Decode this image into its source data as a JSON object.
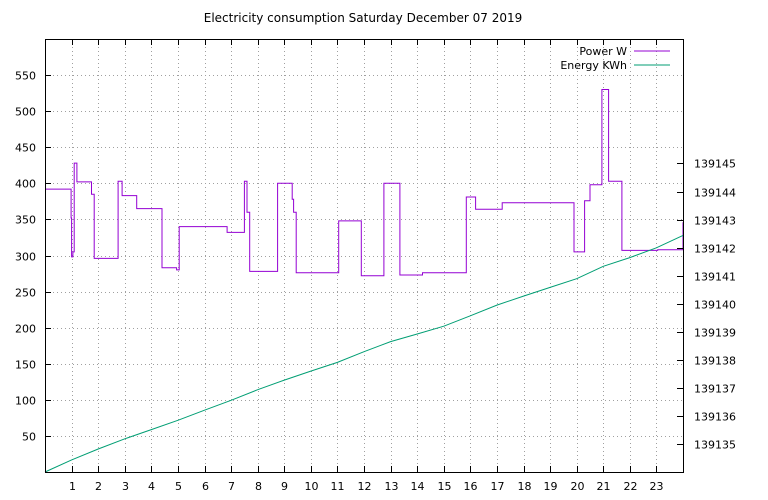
{
  "chart_data": {
    "type": "line",
    "title": "Electricity consumption Saturday December 07 2019",
    "xlim": [
      0,
      24
    ],
    "x_ticks": [
      1,
      2,
      3,
      4,
      5,
      6,
      7,
      8,
      9,
      10,
      11,
      12,
      13,
      14,
      15,
      16,
      17,
      18,
      19,
      20,
      21,
      22,
      23
    ],
    "y_left_lim": [
      0,
      600
    ],
    "y_left_ticks": [
      50,
      100,
      150,
      200,
      250,
      300,
      350,
      400,
      450,
      500,
      550
    ],
    "y_right_lim": [
      139134.02,
      139149.43
    ],
    "y_right_ticks": [
      139135,
      139136,
      139137,
      139138,
      139139,
      139140,
      139141,
      139142,
      139143,
      139144,
      139145
    ],
    "grid": true,
    "legend_position": "top-right",
    "series": [
      {
        "name": "Power W",
        "color": "#9400d3",
        "axis": "left",
        "step": true,
        "x": [
          0,
          0.98,
          1.0,
          1.05,
          1.1,
          1.2,
          1.35,
          1.75,
          1.85,
          2.65,
          2.75,
          2.9,
          3.35,
          3.45,
          4.4,
          4.95,
          5.05,
          6.0,
          6.85,
          7.5,
          7.6,
          7.7,
          8.7,
          8.75,
          9.2,
          9.3,
          9.35,
          9.45,
          11.05,
          11.8,
          11.9,
          12.65,
          12.75,
          13.25,
          13.35,
          14.2,
          15.55,
          15.85,
          16.2,
          17.2,
          18.8,
          19.9,
          20.2,
          20.3,
          20.5,
          20.95,
          21.2,
          21.7,
          23.05,
          24
        ],
        "y": [
          392,
          352,
          298,
          305,
          428,
          402,
          402,
          385,
          296,
          296,
          403,
          383,
          383,
          365,
          283,
          280,
          340,
          340,
          332,
          403,
          360,
          278,
          278,
          400,
          400,
          378,
          360,
          276,
          348,
          348,
          272,
          272,
          400,
          400,
          273,
          276,
          276,
          381,
          364,
          373,
          373,
          305,
          305,
          376,
          398,
          530,
          403,
          307,
          308,
          346
        ]
      },
      {
        "name": "Energy KWh",
        "color": "#009e73",
        "axis": "right",
        "step": false,
        "x": [
          0,
          1,
          2,
          3,
          4,
          5,
          6,
          7,
          8,
          9,
          10,
          11,
          12,
          13,
          14,
          15,
          16,
          17,
          18,
          19,
          20,
          21,
          22,
          23,
          24
        ],
        "y": [
          139134.02,
          139134.45,
          139134.84,
          139135.2,
          139135.53,
          139135.86,
          139136.22,
          139136.57,
          139136.95,
          139137.29,
          139137.61,
          139137.92,
          139138.3,
          139138.66,
          139138.93,
          139139.21,
          139139.58,
          139139.96,
          139140.28,
          139140.59,
          139140.9,
          139141.34,
          139141.65,
          139142.0,
          139142.44
        ]
      }
    ]
  }
}
